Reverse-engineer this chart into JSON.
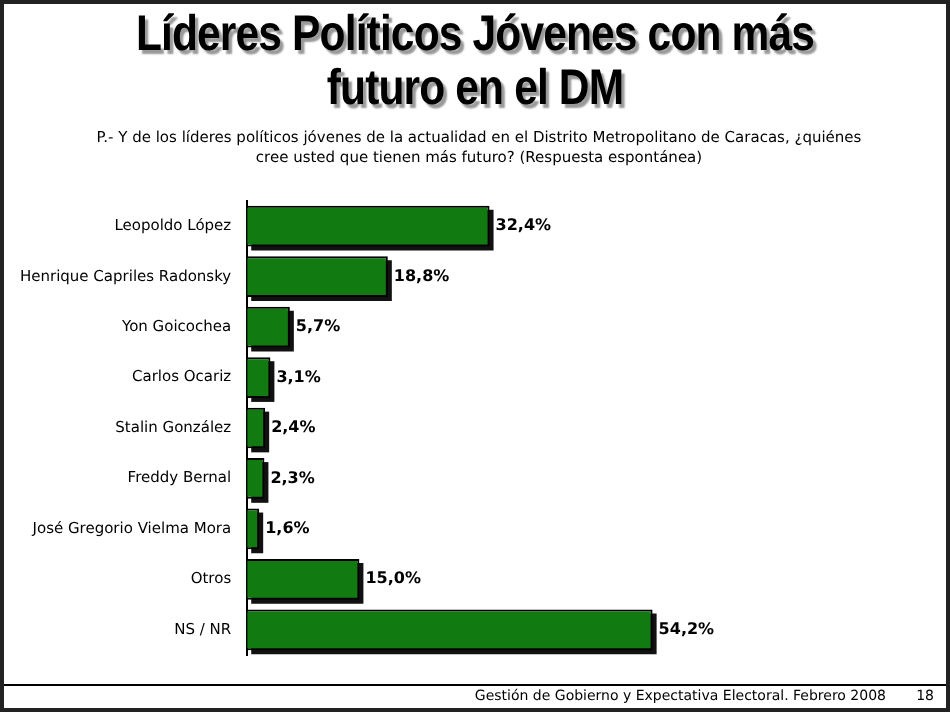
{
  "chart_data": {
    "type": "bar",
    "orientation": "horizontal",
    "title": "Líderes Políticos Jóvenes con más futuro en el DM",
    "subtitle": "P.- Y de los líderes políticos jóvenes de la actualidad en el Distrito Metropolitano de Caracas, ¿quiénes cree usted que tienen más futuro? (Respuesta espontánea)",
    "categories": [
      "Leopoldo López",
      "Henrique Capriles Radonsky",
      "Yon Goicochea",
      "Carlos Ocariz",
      "Stalin González",
      "Freddy Bernal",
      "José Gregorio Vielma Mora",
      "Otros",
      "NS / NR"
    ],
    "values": [
      32.4,
      18.8,
      5.7,
      3.1,
      2.4,
      2.3,
      1.6,
      15.0,
      54.2
    ],
    "value_labels": [
      "32,4%",
      "18,8%",
      "5,7%",
      "3,1%",
      "2,4%",
      "2,3%",
      "1,6%",
      "15,0%",
      "54,2%"
    ],
    "color": "#117a11",
    "grid": false,
    "legend": false,
    "annotations": [
      "Gestión de Gobierno y Expectativa Electoral. Febrero 2008",
      "18"
    ]
  }
}
